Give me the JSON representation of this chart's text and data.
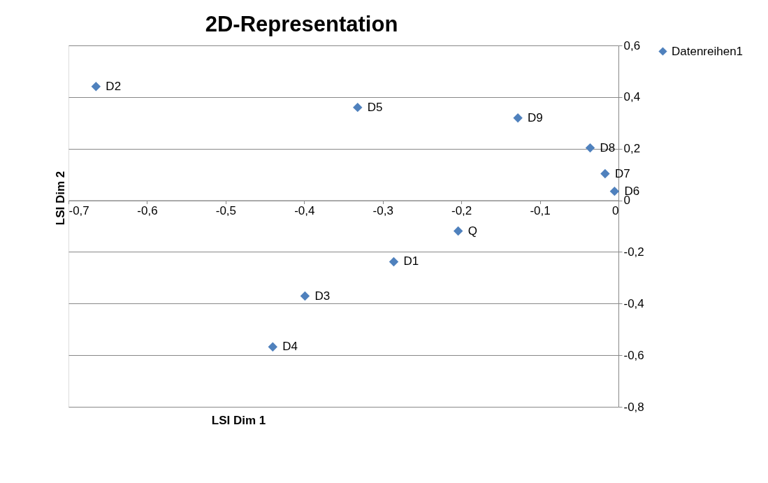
{
  "chart_data": {
    "type": "scatter",
    "title": "2D-Representation",
    "xlabel": "LSI Dim 1",
    "ylabel": "LSI Dim 2",
    "x": [
      -0.665,
      -0.332,
      -0.128,
      -0.036,
      -0.017,
      -0.005,
      -0.204,
      -0.286,
      -0.399,
      -0.44
    ],
    "series": [
      {
        "name": "Datenreihen1",
        "color": "#4f81bd",
        "values": [
          0.441,
          0.36,
          0.319,
          0.203,
          0.103,
          0.035,
          -0.119,
          -0.238,
          -0.371,
          -0.568
        ]
      }
    ],
    "annotations": [
      {
        "text": "D2",
        "x": -0.665,
        "y": 0.441
      },
      {
        "text": "D5",
        "x": -0.332,
        "y": 0.36
      },
      {
        "text": "D9",
        "x": -0.128,
        "y": 0.319
      },
      {
        "text": "D8",
        "x": -0.036,
        "y": 0.203
      },
      {
        "text": "D7",
        "x": -0.017,
        "y": 0.103
      },
      {
        "text": "D6",
        "x": -0.005,
        "y": 0.035
      },
      {
        "text": "Q",
        "x": -0.204,
        "y": -0.119
      },
      {
        "text": "D1",
        "x": -0.286,
        "y": -0.238
      },
      {
        "text": "D3",
        "x": -0.399,
        "y": -0.371
      },
      {
        "text": "D4",
        "x": -0.44,
        "y": -0.568
      }
    ],
    "xlim": [
      -0.7,
      0
    ],
    "ylim": [
      -0.8,
      0.6
    ],
    "xticks": [
      {
        "value": -0.7,
        "label": "-0,7"
      },
      {
        "value": -0.6,
        "label": "-0,6"
      },
      {
        "value": -0.5,
        "label": "-0,5"
      },
      {
        "value": -0.4,
        "label": "-0,4"
      },
      {
        "value": -0.3,
        "label": "-0,3"
      },
      {
        "value": -0.2,
        "label": "-0,2"
      },
      {
        "value": -0.1,
        "label": "-0,1"
      },
      0
    ],
    "yticks": [
      {
        "value": -0.8,
        "label": "-0,8"
      },
      {
        "value": -0.6,
        "label": "-0,6"
      },
      {
        "value": -0.4,
        "label": "-0,4"
      },
      {
        "value": -0.2,
        "label": "-0,2"
      },
      0,
      {
        "value": 0.2,
        "label": "0,2"
      },
      {
        "value": 0.4,
        "label": "0,4"
      },
      {
        "value": 0.6,
        "label": "0,6"
      }
    ],
    "grid": "y",
    "legend": "right",
    "marker": "diamond"
  }
}
